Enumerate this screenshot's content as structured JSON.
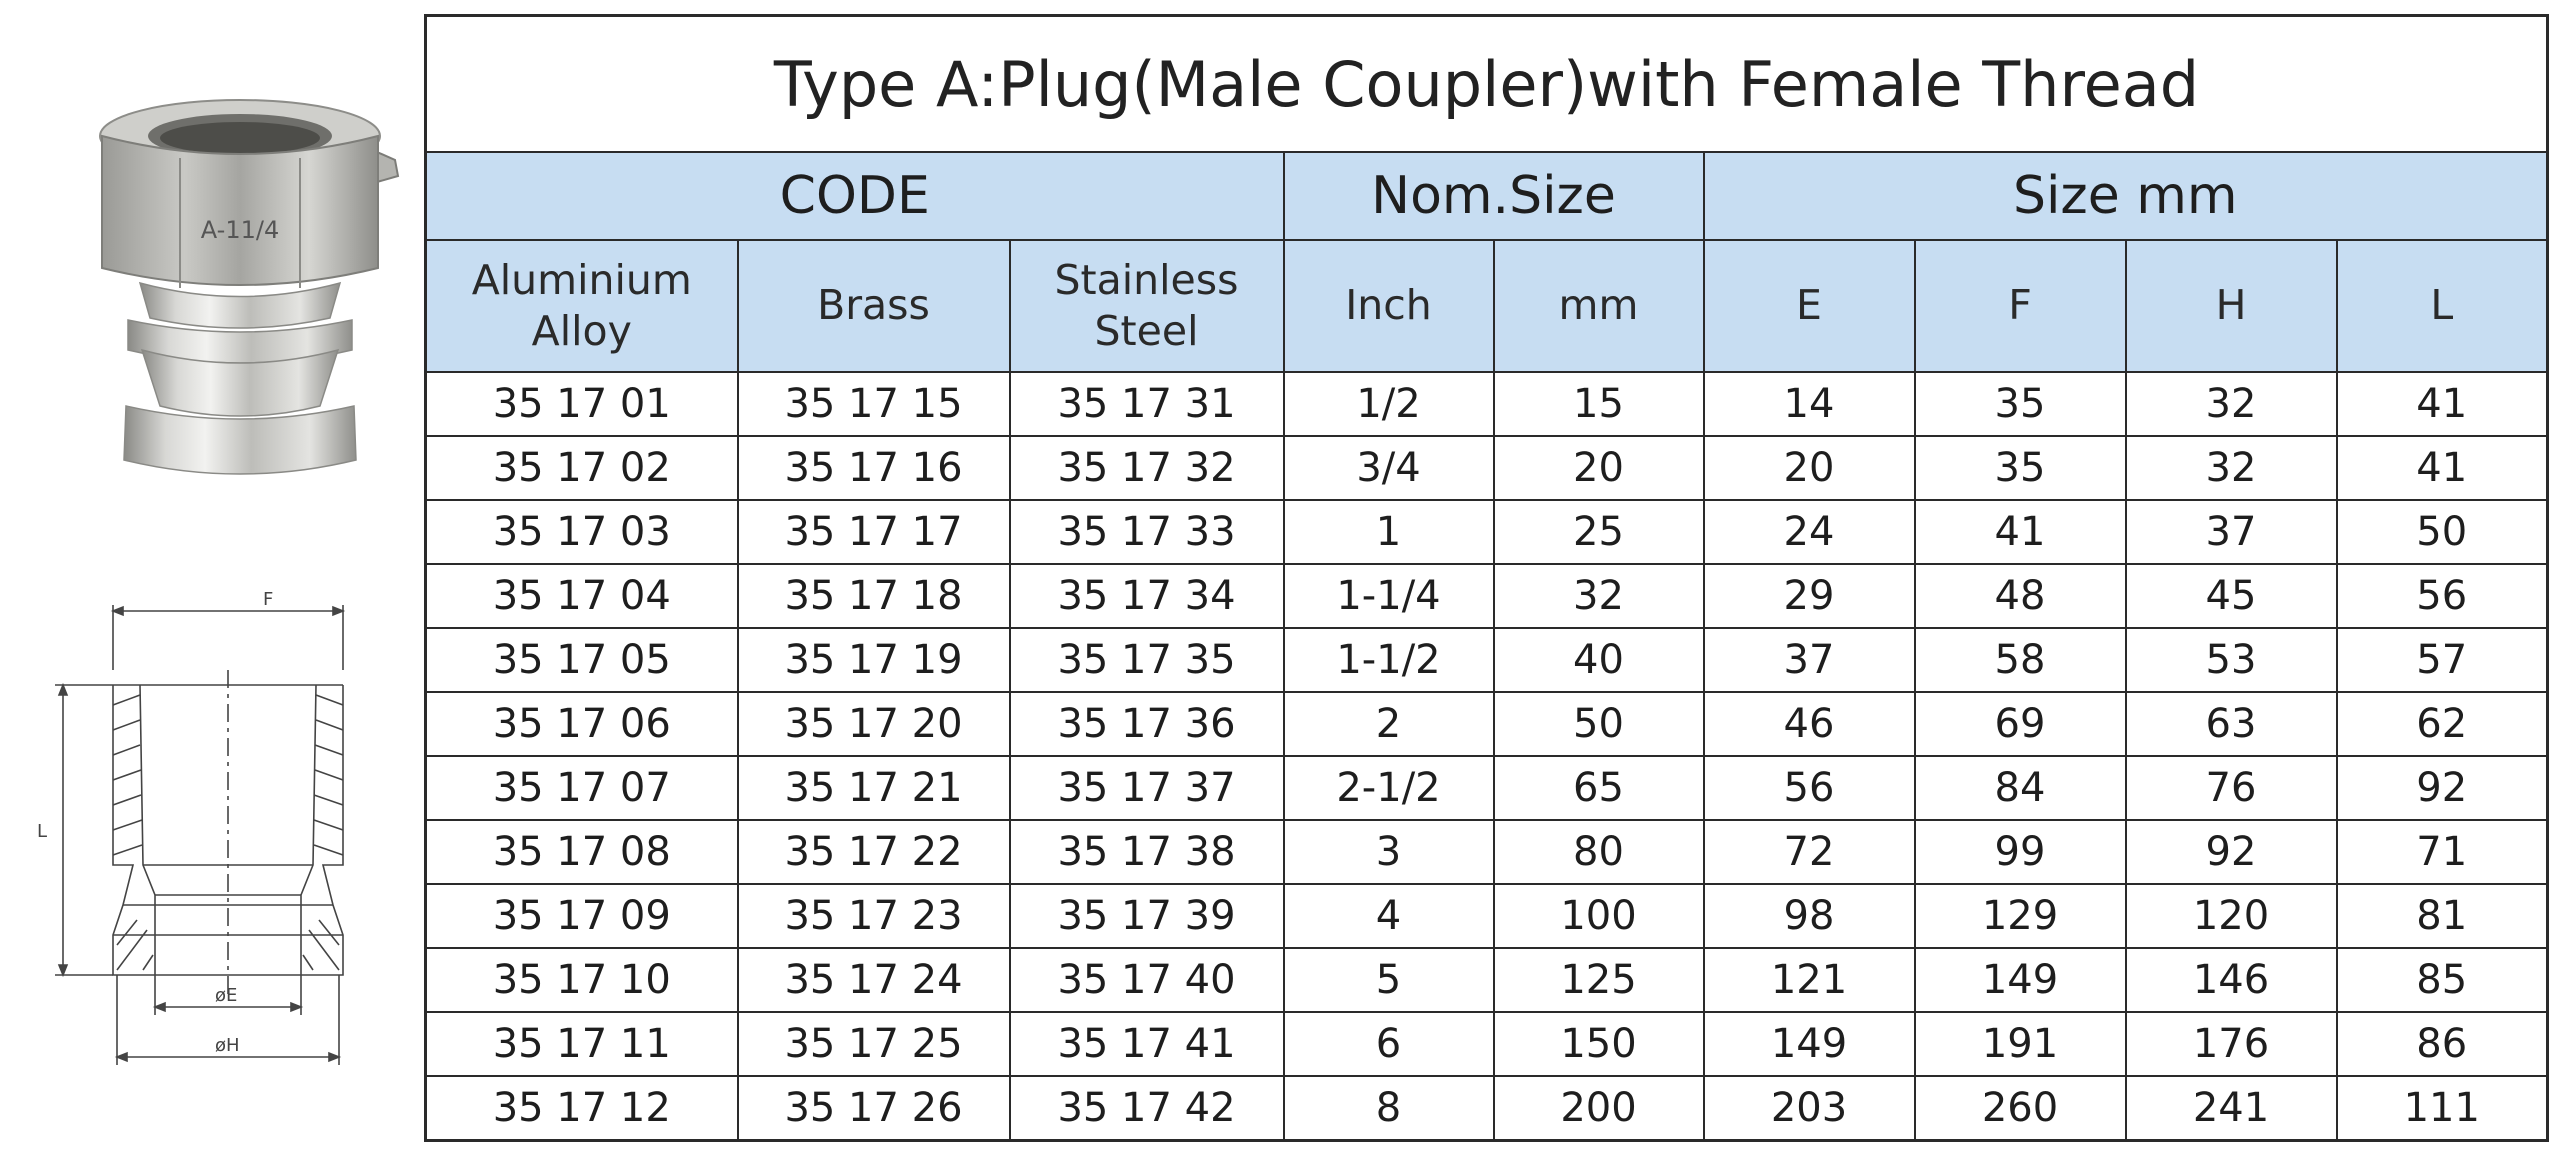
{
  "title": "Type A:Plug(Male Coupler)with Female Thread",
  "groups": {
    "code": "CODE",
    "nom_size": "Nom.Size",
    "size_mm": "Size mm"
  },
  "sub_headers": {
    "aluminium": "Aluminium Alloy",
    "brass": "Brass",
    "stainless": "Stainless Steel",
    "inch": "Inch",
    "mm": "mm",
    "e": "E",
    "f": "F",
    "h": "H",
    "l": "L"
  },
  "rows": [
    [
      "35 17 01",
      "35 17 15",
      "35 17 31",
      "1/2",
      "15",
      "14",
      "35",
      "32",
      "41"
    ],
    [
      "35 17 02",
      "35 17 16",
      "35 17 32",
      "3/4",
      "20",
      "20",
      "35",
      "32",
      "41"
    ],
    [
      "35 17 03",
      "35 17 17",
      "35 17 33",
      "1",
      "25",
      "24",
      "41",
      "37",
      "50"
    ],
    [
      "35 17 04",
      "35 17 18",
      "35 17 34",
      "1-1/4",
      "32",
      "29",
      "48",
      "45",
      "56"
    ],
    [
      "35 17 05",
      "35 17 19",
      "35 17 35",
      "1-1/2",
      "40",
      "37",
      "58",
      "53",
      "57"
    ],
    [
      "35 17 06",
      "35 17 20",
      "35 17 36",
      "2",
      "50",
      "46",
      "69",
      "63",
      "62"
    ],
    [
      "35 17 07",
      "35 17 21",
      "35 17 37",
      "2-1/2",
      "65",
      "56",
      "84",
      "76",
      "92"
    ],
    [
      "35 17 08",
      "35 17 22",
      "35 17 38",
      "3",
      "80",
      "72",
      "99",
      "92",
      "71"
    ],
    [
      "35 17 09",
      "35 17 23",
      "35 17 39",
      "4",
      "100",
      "98",
      "129",
      "120",
      "81"
    ],
    [
      "35 17 10",
      "35 17 24",
      "35 17 40",
      "5",
      "125",
      "121",
      "149",
      "146",
      "85"
    ],
    [
      "35 17 11",
      "35 17 25",
      "35 17 41",
      "6",
      "150",
      "149",
      "191",
      "176",
      "86"
    ],
    [
      "35 17 12",
      "35 17 26",
      "35 17 42",
      "8",
      "200",
      "203",
      "260",
      "241",
      "111"
    ]
  ],
  "photo": {
    "engraving": "A-11/4"
  },
  "drawing": {
    "label_f": "F",
    "label_l": "L",
    "label_e": "øE",
    "label_h": "øH"
  },
  "colors": {
    "header_bg": "#c7ddf2",
    "border": "#2a2a2a",
    "metal_light": "#e6e6e4",
    "metal_dark": "#8c8c88"
  }
}
